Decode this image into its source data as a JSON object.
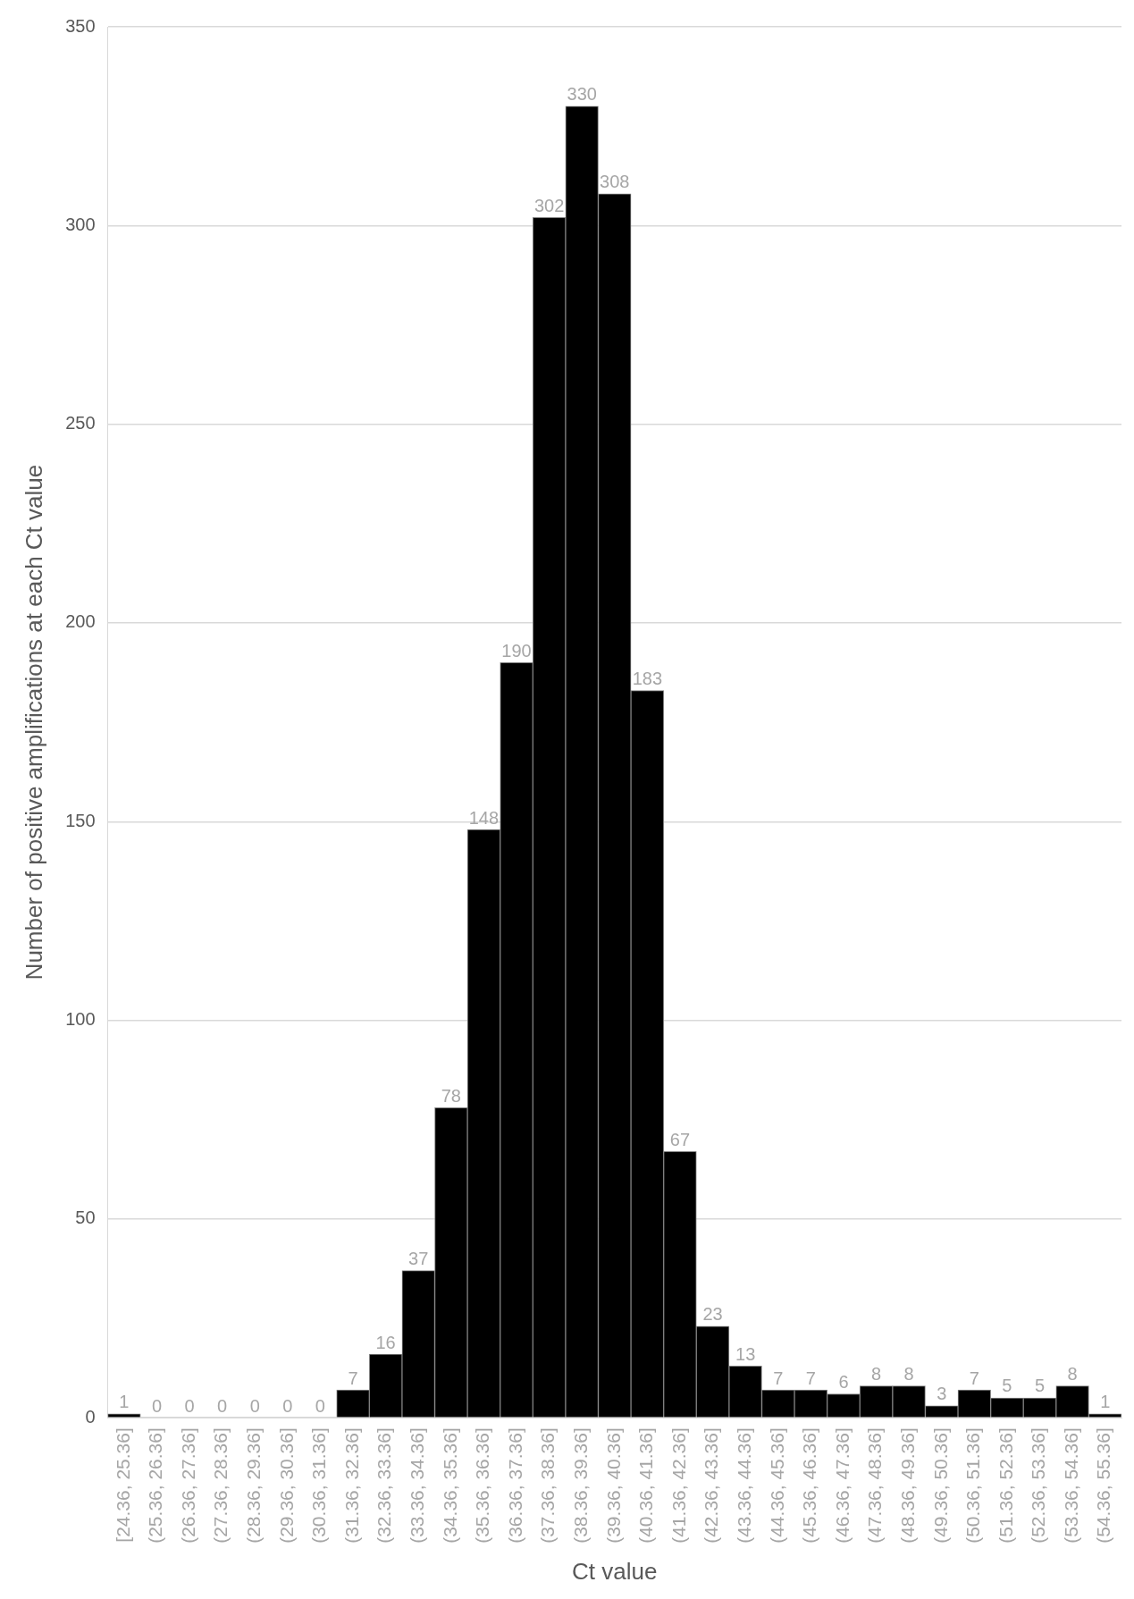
{
  "chart_data": {
    "type": "bar",
    "xlabel": "Ct value",
    "ylabel": "Number of positive amplifications at each Ct value",
    "categories": [
      "[24.36, 25.36]",
      "(25.36, 26.36]",
      "(26.36, 27.36]",
      "(27.36, 28.36]",
      "(28.36, 29.36]",
      "(29.36, 30.36]",
      "(30.36, 31.36]",
      "(31.36, 32.36]",
      "(32.36, 33.36]",
      "(33.36, 34.36]",
      "(34.36, 35.36]",
      "(35.36, 36.36]",
      "(36.36, 37.36]",
      "(37.36, 38.36]",
      "(38.36, 39.36]",
      "(39.36, 40.36]",
      "(40.36, 41.36]",
      "(41.36, 42.36]",
      "(42.36, 43.36]",
      "(43.36, 44.36]",
      "(44.36, 45.36]",
      "(45.36, 46.36]",
      "(46.36, 47.36]",
      "(47.36, 48.36]",
      "(48.36, 49.36]",
      "(49.36, 50.36]",
      "(50.36, 51.36]",
      "(51.36, 52.36]",
      "(52.36, 53.36]",
      "(53.36, 54.36]",
      "(54.36, 55.36]"
    ],
    "values": [
      1,
      0,
      0,
      0,
      0,
      0,
      0,
      7,
      16,
      37,
      78,
      148,
      190,
      302,
      330,
      308,
      183,
      67,
      23,
      13,
      7,
      7,
      6,
      8,
      8,
      3,
      7,
      5,
      5,
      8,
      1
    ],
    "color": "#000000",
    "ylim": [
      0,
      350
    ],
    "yticks": [
      0,
      50,
      100,
      150,
      200,
      250,
      300,
      350
    ],
    "grid": "y",
    "data_labels": true,
    "legend": false
  }
}
